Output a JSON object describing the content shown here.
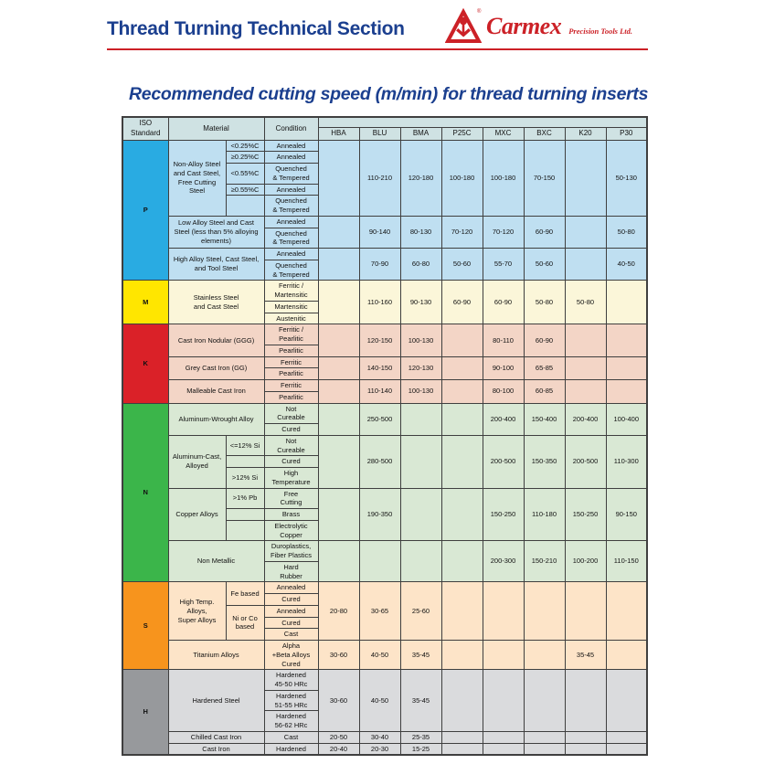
{
  "header": {
    "title": "Thread Turning Technical Section",
    "brand": "Carmex",
    "brand_suffix": "Precision Tools Ltd.",
    "accent_red": "#cc2127",
    "navy": "#1b3f8f"
  },
  "table_title": "Recommended cutting speed (m/min) for thread turning inserts",
  "table": {
    "corner": {
      "iso": "ISO\nStandard",
      "material": "Material",
      "condition": "Condition"
    },
    "grades": [
      "HBA",
      "BLU",
      "BMA",
      "P25C",
      "MXC",
      "BXC",
      "K20",
      "P30"
    ],
    "header_bg": "#cfe2e3",
    "border_color": "#3f3f3f",
    "sections": [
      {
        "letter": "P",
        "letter_bg": "#29abe2",
        "row_bg": "#bfdff1",
        "materials": [
          {
            "name": "Non-Alloy Steel\nand Cast Steel,\nFree Cutting Steel",
            "has_sub": true,
            "rows": [
              {
                "sub": {
                  "text": "<0.25%C",
                  "span": 1
                },
                "cond": "Annealed"
              },
              {
                "sub": {
                  "text": "≥0.25%C",
                  "span": 1
                },
                "cond": "Annealed"
              },
              {
                "sub": {
                  "text": "<0.55%C",
                  "span": 1
                },
                "cond": "Quenched\n& Tempered"
              },
              {
                "sub": {
                  "text": "≥0.55%C",
                  "span": 1
                },
                "cond": "Annealed"
              },
              {
                "sub": {
                  "text": "",
                  "span": 1
                },
                "cond": "Quenched\n& Tempered"
              }
            ],
            "values": [
              "",
              "110-210",
              "120-180",
              "100-180",
              "100-180",
              "70-150",
              "",
              "50-130"
            ]
          },
          {
            "name": "Low Alloy Steel and Cast\nSteel (less than 5% alloying\nelements)",
            "has_sub": false,
            "rows": [
              {
                "cond": "Annealed"
              },
              {
                "cond": "Quenched\n& Tempered"
              }
            ],
            "values": [
              "",
              "90-140",
              "80-130",
              "70-120",
              "70-120",
              "60-90",
              "",
              "50-80"
            ]
          },
          {
            "name": "High Alloy Steel, Cast Steel,\nand Tool Steel",
            "has_sub": false,
            "rows": [
              {
                "cond": "Annealed"
              },
              {
                "cond": "Quenched\n& Tempered"
              }
            ],
            "values": [
              "",
              "70-90",
              "60-80",
              "50-60",
              "55-70",
              "50-60",
              "",
              "40-50"
            ]
          }
        ]
      },
      {
        "letter": "M",
        "letter_bg": "#ffe600",
        "row_bg": "#fbf6d9",
        "materials": [
          {
            "name": "Stainless Steel\nand Cast Steel",
            "has_sub": false,
            "rows": [
              {
                "cond": "Ferritic /\nMartensitic"
              },
              {
                "cond": "Martensitic"
              },
              {
                "cond": "Austenitic"
              }
            ],
            "values": [
              "",
              "110-160",
              "90-130",
              "60-90",
              "60-90",
              "50-80",
              "50-80",
              ""
            ]
          }
        ]
      },
      {
        "letter": "K",
        "letter_bg": "#da2128",
        "row_bg": "#f3d5c6",
        "materials": [
          {
            "name": "Cast Iron Nodular (GGG)",
            "has_sub": false,
            "rows": [
              {
                "cond": "Ferritic /\nPearlitic"
              },
              {
                "cond": "Pearlitic"
              }
            ],
            "values": [
              "",
              "120-150",
              "100-130",
              "",
              "80-110",
              "60-90",
              "",
              ""
            ]
          },
          {
            "name": "Grey Cast Iron (GG)",
            "has_sub": false,
            "rows": [
              {
                "cond": "Ferritic"
              },
              {
                "cond": "Pearlitic"
              }
            ],
            "values": [
              "",
              "140-150",
              "120-130",
              "",
              "90-100",
              "65-85",
              "",
              ""
            ]
          },
          {
            "name": "Malleable Cast Iron",
            "has_sub": false,
            "rows": [
              {
                "cond": "Ferritic"
              },
              {
                "cond": "Pearlitic"
              }
            ],
            "values": [
              "",
              "110-140",
              "100-130",
              "",
              "80-100",
              "60-85",
              "",
              ""
            ]
          }
        ]
      },
      {
        "letter": "N",
        "letter_bg": "#3bb54a",
        "row_bg": "#d9e8d4",
        "materials": [
          {
            "name": "Aluminum-Wrought Alloy",
            "has_sub": false,
            "rows": [
              {
                "cond": "Not\nCureable"
              },
              {
                "cond": "Cured"
              }
            ],
            "values": [
              "",
              "250-500",
              "",
              "",
              "200-400",
              "150-400",
              "200-400",
              "100-400"
            ]
          },
          {
            "name": "Aluminum-Cast,\nAlloyed",
            "has_sub": true,
            "rows": [
              {
                "sub": {
                  "text": "<=12% Si",
                  "span": 1
                },
                "cond": "Not\nCureable"
              },
              {
                "sub": {
                  "text": "",
                  "span": 1
                },
                "cond": "Cured"
              },
              {
                "sub": {
                  "text": ">12% Si",
                  "span": 1
                },
                "cond": "High\nTemperature"
              }
            ],
            "values": [
              "",
              "280-500",
              "",
              "",
              "200-500",
              "150-350",
              "200-500",
              "110-300"
            ]
          },
          {
            "name": "Copper Alloys",
            "has_sub": true,
            "rows": [
              {
                "sub": {
                  "text": ">1% Pb",
                  "span": 1
                },
                "cond": "Free\nCutting"
              },
              {
                "sub": {
                  "text": "",
                  "span": 1
                },
                "cond": "Brass"
              },
              {
                "sub": {
                  "text": "",
                  "span": 1
                },
                "cond": "Electrolytic\nCopper"
              }
            ],
            "values": [
              "",
              "190-350",
              "",
              "",
              "150-250",
              "110-180",
              "150-250",
              "90-150"
            ]
          },
          {
            "name": "Non Metallic",
            "has_sub": false,
            "rows": [
              {
                "cond": "Duroplastics,\nFiber Plastics"
              },
              {
                "cond": "Hard\nRubber"
              }
            ],
            "values": [
              "",
              "",
              "",
              "",
              "200-300",
              "150-210",
              "100-200",
              "110-150"
            ]
          }
        ]
      },
      {
        "letter": "S",
        "letter_bg": "#f7941d",
        "row_bg": "#fde4c8",
        "materials": [
          {
            "name": "High Temp. Alloys,\nSuper Alloys",
            "has_sub": true,
            "rows": [
              {
                "sub": {
                  "text": "Fe based",
                  "span": 2
                },
                "cond": "Annealed"
              },
              {
                "cond": "Cured"
              },
              {
                "sub": {
                  "text": "Ni or Co\nbased",
                  "span": 3
                },
                "cond": "Annealed"
              },
              {
                "cond": "Cured"
              },
              {
                "cond": "Cast"
              }
            ],
            "values": [
              "20-80",
              "30-65",
              "25-60",
              "",
              "",
              "",
              "",
              ""
            ]
          },
          {
            "name": "Titanium Alloys",
            "has_sub": false,
            "rows": [
              {
                "cond": "Alpha\n+Beta Alloys\nCured"
              }
            ],
            "values": [
              "30-60",
              "40-50",
              "35-45",
              "",
              "",
              "",
              "35-45",
              ""
            ]
          }
        ]
      },
      {
        "letter": "H",
        "letter_bg": "#97999c",
        "row_bg": "#dadbdd",
        "materials": [
          {
            "name": "Hardened Steel",
            "has_sub": false,
            "rows": [
              {
                "cond": "Hardened\n45-50 HRc"
              },
              {
                "cond": "Hardened\n51-55 HRc"
              },
              {
                "cond": "Hardened\n56-62 HRc"
              }
            ],
            "values": [
              "30-60",
              "40-50",
              "35-45",
              "",
              "",
              "",
              "",
              ""
            ]
          },
          {
            "name": "Chilled Cast Iron",
            "has_sub": false,
            "rows": [
              {
                "cond": "Cast"
              }
            ],
            "values": [
              "20-50",
              "30-40",
              "25-35",
              "",
              "",
              "",
              "",
              ""
            ]
          },
          {
            "name": "Cast Iron",
            "has_sub": false,
            "rows": [
              {
                "cond": "Hardened"
              }
            ],
            "values": [
              "20-40",
              "20-30",
              "15-25",
              "",
              "",
              "",
              "",
              ""
            ]
          }
        ]
      }
    ]
  }
}
